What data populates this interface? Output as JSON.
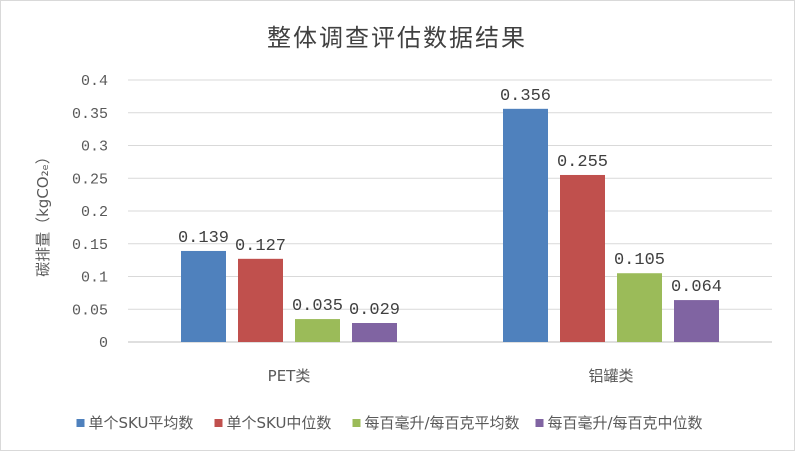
{
  "chart_data": {
    "type": "bar",
    "title": "整体调查评估数据结果",
    "ylabel": "碳排量（kgCO₂ₑ）",
    "xlabel": "",
    "categories": [
      "PET类",
      "铝罐类"
    ],
    "ylim": [
      0,
      0.4
    ],
    "yticks": [
      "0",
      "0.05",
      "0.1",
      "0.15",
      "0.2",
      "0.25",
      "0.3",
      "0.35",
      "0.4"
    ],
    "grid": true,
    "legend_position": "bottom",
    "series": [
      {
        "name": "单个SKU平均数",
        "values": [
          0.139,
          0.356
        ],
        "labels": [
          "0.139",
          "0.356"
        ],
        "color": "#4f81bd"
      },
      {
        "name": "单个SKU中位数",
        "values": [
          0.127,
          0.255
        ],
        "labels": [
          "0.127",
          "0.255"
        ],
        "color": "#c0504d"
      },
      {
        "name": "每百毫升/每百克平均数",
        "values": [
          0.035,
          0.105
        ],
        "labels": [
          "0.035",
          "0.105"
        ],
        "color": "#9bbb59"
      },
      {
        "name": "每百毫升/每百克中位数",
        "values": [
          0.029,
          0.064
        ],
        "labels": [
          "0.029",
          "0.064"
        ],
        "color": "#8064a2"
      }
    ]
  }
}
